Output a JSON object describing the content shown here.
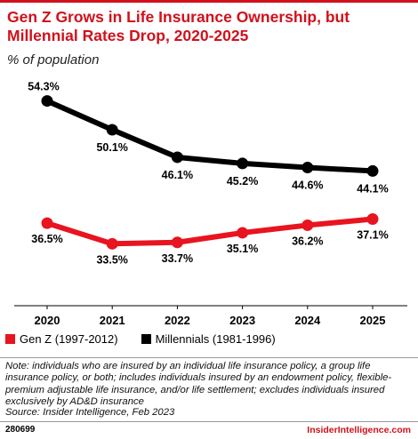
{
  "title": "Gen Z Grows in Life Insurance Ownership, but Millennial Rates Drop, 2020-2025",
  "subtitle": "% of population",
  "colors": {
    "accent": "#d1111c",
    "genz": "#e8141f",
    "millennials": "#000000"
  },
  "chart_data": {
    "type": "line",
    "x": [
      "2020",
      "2021",
      "2022",
      "2023",
      "2024",
      "2025"
    ],
    "ylim": [
      25,
      58
    ],
    "grid": false,
    "legend_position": "bottom-left",
    "series": [
      {
        "name": "Gen Z (1997-2012)",
        "values": [
          36.5,
          33.5,
          33.7,
          35.1,
          36.2,
          37.1
        ],
        "labels": [
          "36.5%",
          "33.5%",
          "33.7%",
          "35.1%",
          "36.2%",
          "37.1%"
        ]
      },
      {
        "name": "Millennials (1981-1996)",
        "values": [
          54.3,
          50.1,
          46.1,
          45.2,
          44.6,
          44.1
        ],
        "labels": [
          "54.3%",
          "50.1%",
          "46.1%",
          "45.2%",
          "44.6%",
          "44.1%"
        ]
      }
    ]
  },
  "legend": {
    "genz": "Gen Z (1997-2012)",
    "millennials": "Millennials (1981-1996)"
  },
  "note": "Note: individuals who are insured by an individual life insurance policy, a group life insurance policy, or both; includes individuals insured by an endowment policy, flexible-premium adjustable life insurance, and/or life settlement; excludes individuals insured exclusively by AD&D insurance",
  "source": "Source: Insider Intelligence, Feb 2023",
  "footer": {
    "chart_id": "280699",
    "brand": "InsiderIntelligence.com"
  }
}
